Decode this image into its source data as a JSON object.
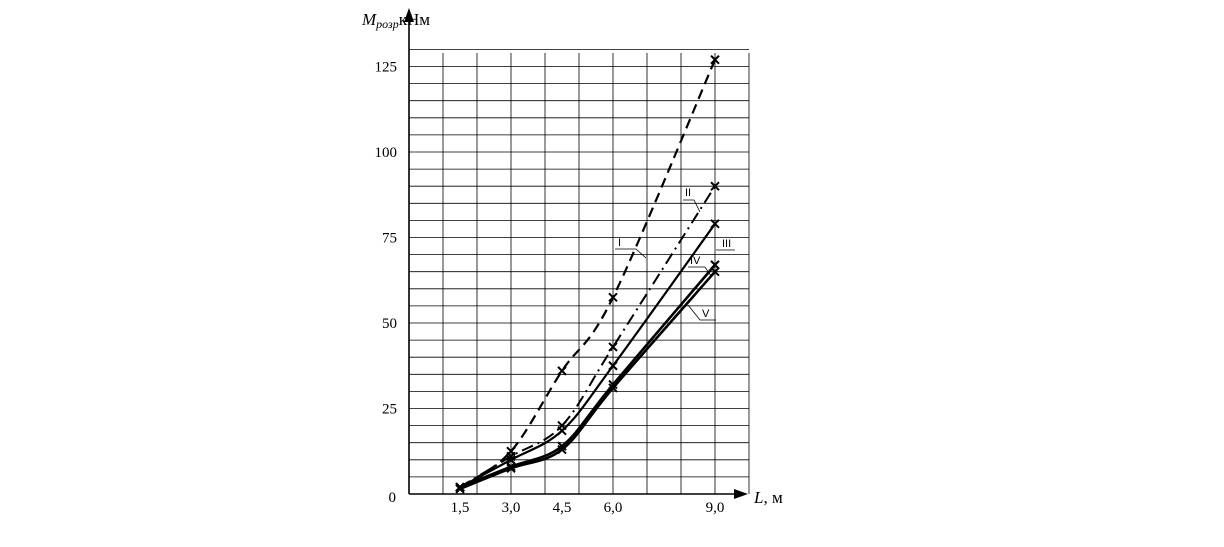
{
  "chart_data": {
    "type": "line",
    "ylabel": {
      "main": "M",
      "sub": "розр",
      "unit": "кНм"
    },
    "xlabel": {
      "main": "L",
      "unit": ", м"
    },
    "x_ticks": [
      "1,5",
      "3,0",
      "4,5",
      "6,0",
      "9,0"
    ],
    "y_ticks": [
      "0",
      "25",
      "50",
      "75",
      "100",
      "125"
    ],
    "xlim": [
      0,
      10
    ],
    "ylim": [
      0,
      125
    ],
    "grid": true,
    "series": [
      {
        "name": "I",
        "style": "dashed",
        "width": 2.2,
        "x": [
          1.5,
          3.0,
          4.5,
          6.0,
          9.0
        ],
        "y": [
          2,
          12.5,
          36,
          57.5,
          127
        ]
      },
      {
        "name": "II",
        "style": "dashdot",
        "width": 2.0,
        "x": [
          1.5,
          3.0,
          4.5,
          6.0,
          9.0
        ],
        "y": [
          2,
          11,
          20,
          43,
          90
        ]
      },
      {
        "name": "III",
        "style": "solid",
        "width": 2.2,
        "x": [
          1.5,
          3.0,
          4.5,
          6.0,
          9.0
        ],
        "y": [
          2,
          10,
          18.5,
          37.5,
          79
        ]
      },
      {
        "name": "IV",
        "style": "solid",
        "width": 2.6,
        "x": [
          1.5,
          3.0,
          4.5,
          6.0,
          9.0
        ],
        "y": [
          2,
          8,
          14,
          32,
          67
        ]
      },
      {
        "name": "V",
        "style": "solid",
        "width": 2.6,
        "x": [
          1.5,
          3.0,
          4.5,
          6.0,
          9.0
        ],
        "y": [
          1.5,
          7.5,
          13,
          31,
          65
        ]
      }
    ]
  }
}
